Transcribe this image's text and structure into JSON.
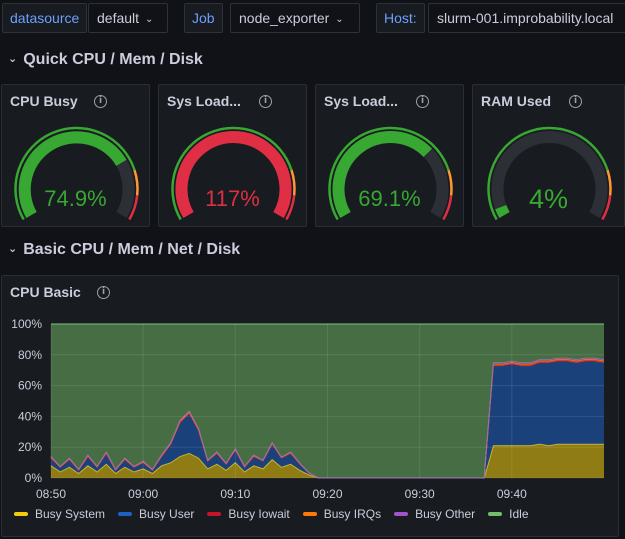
{
  "variables": [
    {
      "label": "datasource",
      "value": "default"
    },
    {
      "label": "Job",
      "value": "node_exporter"
    },
    {
      "label": "Host:",
      "value": "slurm-001.improbability.local"
    }
  ],
  "rows": [
    {
      "title": "Quick CPU / Mem / Disk"
    },
    {
      "title": "Basic CPU / Mem / Net / Disk"
    }
  ],
  "gauges": [
    {
      "title": "CPU Busy",
      "value_text": "74.9%",
      "fraction": 0.749,
      "color": "#37a832"
    },
    {
      "title": "Sys Load...",
      "value_text": "117%",
      "fraction": 1.0,
      "color": "#e02f44"
    },
    {
      "title": "Sys Load...",
      "value_text": "69.1%",
      "fraction": 0.691,
      "color": "#37a832"
    },
    {
      "title": "RAM Used",
      "value_text": "4%",
      "fraction": 0.04,
      "color": "#37a832"
    }
  ],
  "cpu_panel": {
    "title": "CPU Basic"
  },
  "chart_data": {
    "type": "area",
    "title": "CPU Basic",
    "xlabel": "",
    "ylabel": "",
    "ylim": [
      0,
      100
    ],
    "y_ticks": [
      "0%",
      "20%",
      "40%",
      "60%",
      "80%",
      "100%"
    ],
    "x_range_min": [
      0,
      60
    ],
    "x_ticks": [
      {
        "label": "08:50",
        "t": 0
      },
      {
        "label": "09:00",
        "t": 10
      },
      {
        "label": "09:10",
        "t": 20
      },
      {
        "label": "09:20",
        "t": 30
      },
      {
        "label": "09:30",
        "t": 40
      },
      {
        "label": "09:40",
        "t": 50
      }
    ],
    "x": [
      0,
      1,
      2,
      3,
      4,
      5,
      6,
      7,
      8,
      9,
      10,
      11,
      12,
      13,
      14,
      15,
      16,
      17,
      18,
      19,
      20,
      21,
      22,
      23,
      24,
      25,
      26,
      27,
      28,
      29,
      30,
      31,
      32,
      33,
      34,
      35,
      36,
      37,
      38,
      39,
      40,
      41,
      42,
      43,
      44,
      45,
      46,
      47,
      48,
      49,
      50,
      51,
      52,
      53,
      54,
      55,
      56,
      57,
      58,
      59,
      60
    ],
    "series": [
      {
        "name": "Busy System",
        "color": "#f2cc0c",
        "values": [
          8,
          4,
          7,
          3,
          8,
          4,
          9,
          3,
          7,
          4,
          6,
          3,
          8,
          10,
          14,
          16,
          13,
          6,
          9,
          5,
          10,
          4,
          8,
          6,
          12,
          7,
          9,
          5,
          2,
          0,
          0,
          0,
          0,
          0,
          0,
          0,
          0,
          0,
          0,
          0,
          0,
          0,
          0,
          0,
          0,
          0,
          0,
          0,
          21,
          21,
          21,
          21,
          21,
          22,
          21,
          22,
          22,
          22,
          22,
          22,
          22
        ]
      },
      {
        "name": "Busy User",
        "color": "#1f60c4",
        "values": [
          5,
          3,
          5,
          2,
          6,
          3,
          7,
          2,
          5,
          3,
          4,
          2,
          6,
          12,
          22,
          26,
          18,
          5,
          7,
          4,
          8,
          3,
          6,
          5,
          10,
          6,
          7,
          4,
          1,
          0,
          0,
          0,
          0,
          0,
          0,
          0,
          0,
          0,
          0,
          0,
          0,
          0,
          0,
          0,
          0,
          0,
          0,
          0,
          52,
          52,
          53,
          52,
          52,
          53,
          54,
          54,
          54,
          53,
          54,
          54,
          53
        ]
      },
      {
        "name": "Busy Iowait",
        "color": "#c4162a",
        "values": [
          0,
          0,
          0,
          0,
          0,
          0,
          0,
          0,
          0,
          0,
          0,
          0,
          0,
          0,
          0,
          0,
          0,
          0,
          0,
          0,
          0,
          0,
          0,
          0,
          0,
          0,
          0,
          0,
          0,
          0,
          0,
          0,
          0,
          0,
          0,
          0,
          0,
          0,
          0,
          0,
          0,
          0,
          0,
          0,
          0,
          0,
          0,
          0,
          0,
          0,
          0,
          0,
          0,
          0,
          0,
          0,
          0,
          0,
          0,
          0,
          0
        ]
      },
      {
        "name": "Busy IRQs",
        "color": "#ff780a",
        "values": [
          0.5,
          0.3,
          0.5,
          0.3,
          0.5,
          0.3,
          0.5,
          0.3,
          0.5,
          0.3,
          0.5,
          0.3,
          0.5,
          0.5,
          0.8,
          0.8,
          0.6,
          0.3,
          0.5,
          0.3,
          0.5,
          0.3,
          0.5,
          0.3,
          0.5,
          0.3,
          0.5,
          0.3,
          0.2,
          0,
          0,
          0,
          0,
          0,
          0,
          0,
          0,
          0,
          0,
          0,
          0,
          0,
          0,
          0,
          0,
          0,
          0,
          0,
          1,
          1,
          1,
          1,
          1,
          1,
          1,
          1,
          1,
          1,
          1,
          1,
          1
        ]
      },
      {
        "name": "Busy Other",
        "color": "#a352cc",
        "values": [
          0.4,
          0.2,
          0.4,
          0.2,
          0.4,
          0.2,
          0.4,
          0.2,
          0.4,
          0.2,
          0.4,
          0.2,
          0.4,
          0.4,
          0.6,
          0.6,
          0.5,
          0.2,
          0.4,
          0.2,
          0.4,
          0.2,
          0.4,
          0.2,
          0.4,
          0.2,
          0.4,
          0.2,
          0.1,
          0,
          0,
          0,
          0,
          0,
          0,
          0,
          0,
          0,
          0,
          0,
          0,
          0,
          0,
          0,
          0,
          0,
          0,
          0,
          0.8,
          0.8,
          0.8,
          0.8,
          0.8,
          0.8,
          0.8,
          0.8,
          0.8,
          0.8,
          0.8,
          0.8,
          0.8
        ]
      },
      {
        "name": "Idle",
        "color": "#73bf69",
        "values": [
          86.1,
          92.5,
          87.1,
          94.5,
          85.1,
          92.5,
          83.1,
          94.5,
          87.1,
          92.5,
          89.1,
          94.5,
          85.1,
          77.1,
          62.6,
          56.6,
          67.9,
          88.5,
          83.1,
          90.5,
          81.1,
          92.5,
          85.1,
          88.5,
          77.1,
          86.5,
          83.1,
          90.5,
          96.7,
          100,
          100,
          100,
          100,
          100,
          100,
          100,
          100,
          100,
          100,
          100,
          100,
          100,
          100,
          100,
          100,
          100,
          100,
          100,
          25.2,
          25.2,
          24.2,
          25.2,
          25.2,
          23.2,
          23.2,
          22.2,
          22.2,
          23.2,
          22.2,
          22.2,
          23.2
        ]
      }
    ]
  }
}
